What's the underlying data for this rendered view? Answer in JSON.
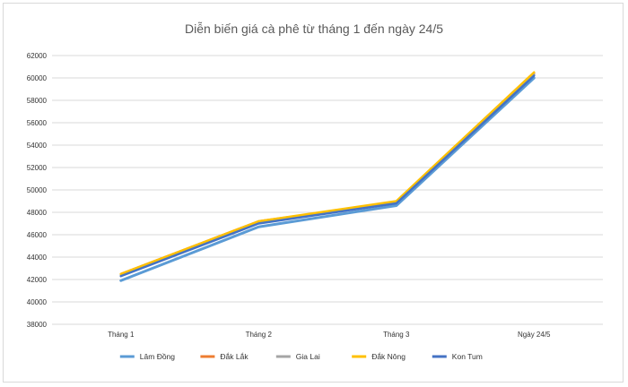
{
  "chart_data": {
    "type": "line",
    "title": "Diễn biến giá cà phê từ tháng 1 đến ngày 24/5",
    "categories": [
      "Tháng 1",
      "Tháng 2",
      "Tháng 3",
      "Ngày 24/5"
    ],
    "ylim": [
      38000,
      62000
    ],
    "yticks": [
      38000,
      40000,
      42000,
      44000,
      46000,
      48000,
      50000,
      52000,
      54000,
      56000,
      58000,
      60000,
      62000
    ],
    "grid": true,
    "legend_position": "bottom",
    "series": [
      {
        "name": "Lâm Đồng",
        "color": "#5b9bd5",
        "values": [
          41900,
          46700,
          48600,
          60000
        ]
      },
      {
        "name": "Đắk Lắk",
        "color": "#ed7d31",
        "values": [
          42500,
          47200,
          48900,
          60400
        ]
      },
      {
        "name": "Gia Lai",
        "color": "#a5a5a5",
        "values": [
          42400,
          47100,
          48900,
          60300
        ]
      },
      {
        "name": "Đắk Nông",
        "color": "#ffc000",
        "values": [
          42500,
          47200,
          49000,
          60500
        ]
      },
      {
        "name": "Kon Tum",
        "color": "#4472c4",
        "values": [
          42300,
          47000,
          48800,
          60200
        ]
      }
    ]
  }
}
